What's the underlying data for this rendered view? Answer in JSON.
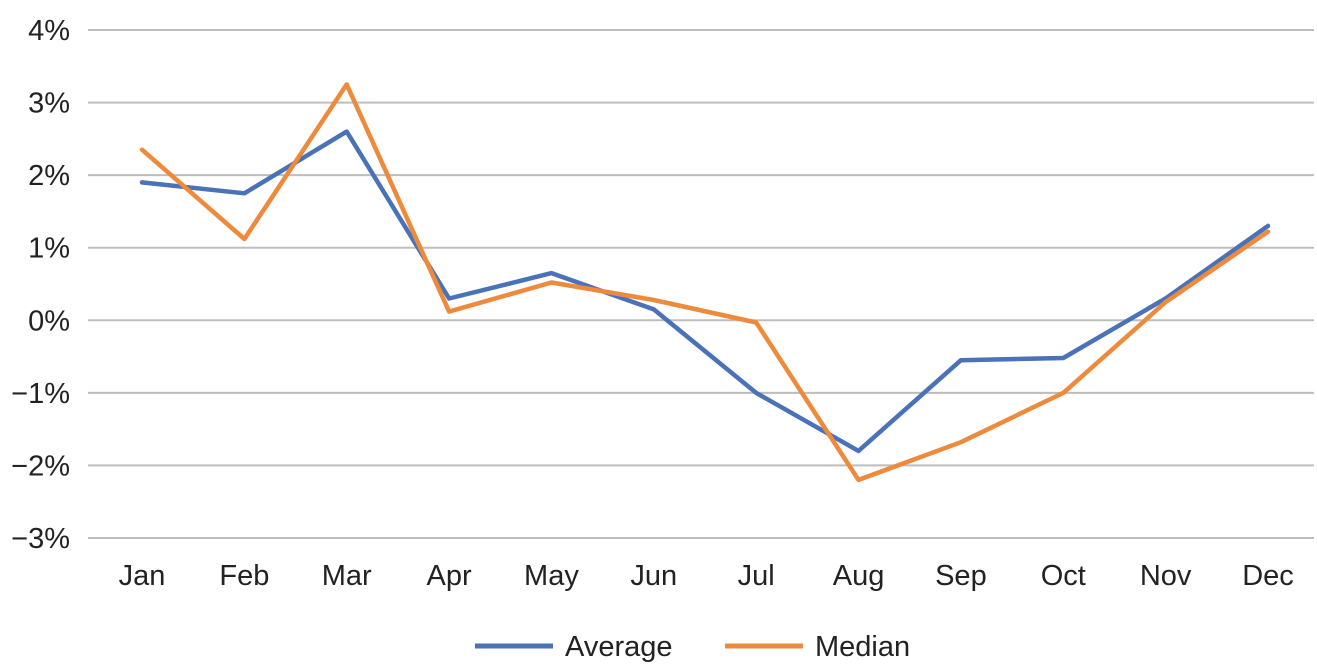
{
  "chart_data": {
    "type": "line",
    "title": "",
    "xlabel": "",
    "ylabel": "",
    "categories": [
      "Jan",
      "Feb",
      "Mar",
      "Apr",
      "May",
      "Jun",
      "Jul",
      "Aug",
      "Sep",
      "Oct",
      "Nov",
      "Dec"
    ],
    "ylim": [
      -3,
      4
    ],
    "yticks": [
      4,
      3,
      2,
      1,
      0,
      -1,
      -2,
      -3
    ],
    "ytick_labels": [
      "4%",
      "3%",
      "2%",
      "1%",
      "0%",
      "−1%",
      "−2%",
      "−3%"
    ],
    "grid": true,
    "legend_position": "bottom",
    "series": [
      {
        "name": "Average",
        "color": "#4a72b8",
        "values": [
          1.9,
          1.75,
          2.6,
          0.3,
          0.65,
          0.15,
          -1.0,
          -1.8,
          -0.55,
          -0.52,
          0.3,
          1.3
        ]
      },
      {
        "name": "Median",
        "color": "#ee8a3c",
        "values": [
          2.35,
          1.12,
          3.25,
          0.12,
          0.52,
          0.28,
          -0.03,
          -2.2,
          -1.68,
          -1.0,
          0.25,
          1.22
        ]
      }
    ]
  }
}
